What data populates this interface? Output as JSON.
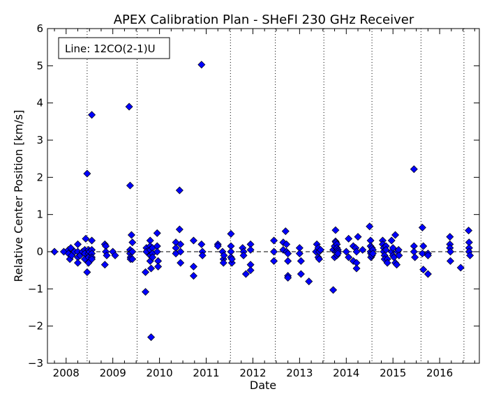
{
  "chart_data": {
    "type": "scatter",
    "title": "APEX Calibration Plan - SHeFI 230 GHz Receiver",
    "xlabel": "Date",
    "ylabel": "Relative Center Position [km/s]",
    "legend_text": "Line: 12CO(2-1)U",
    "legend_position": "top-left",
    "xlim": [
      2007.6,
      2016.85
    ],
    "ylim": [
      -3,
      6
    ],
    "x_ticks": [
      2008,
      2009,
      2010,
      2011,
      2012,
      2013,
      2014,
      2015,
      2016
    ],
    "x_tick_labels": [
      "2008",
      "2009",
      "2010",
      "2011",
      "2012",
      "2013",
      "2014",
      "2015",
      "2016"
    ],
    "x_minor_ticks": [
      2007.75,
      2008.25,
      2008.5,
      2008.75,
      2009.25,
      2009.5,
      2009.75,
      2010.25,
      2010.5,
      2010.75,
      2011.25,
      2011.5,
      2011.75,
      2012.25,
      2012.5,
      2012.75,
      2013.25,
      2013.5,
      2013.75,
      2014.25,
      2014.5,
      2014.75,
      2015.25,
      2015.5,
      2015.75,
      2016.25,
      2016.5,
      2016.75
    ],
    "y_ticks": [
      -3,
      -2,
      -1,
      0,
      1,
      2,
      3,
      4,
      5,
      6
    ],
    "y_tick_labels": [
      "−3",
      "−2",
      "−1",
      "0",
      "1",
      "2",
      "3",
      "4",
      "5",
      "6"
    ],
    "vertical_dotted_lines": [
      2008.45,
      2009.52,
      2011.52,
      2012.48,
      2013.52,
      2014.55,
      2015.6,
      2016.52
    ],
    "reference_line_y": 0,
    "marker_color": "#0000ff",
    "marker_edge_color": "#000000",
    "series": [
      {
        "x": [
          2007.75,
          2007.95,
          2008.05,
          2008.05,
          2008.08,
          2008.1,
          2008.12,
          2008.18,
          2008.25,
          2008.25,
          2008.25,
          2008.25,
          2008.3,
          2008.35,
          2008.4,
          2008.4,
          2008.4,
          2008.42,
          2008.45,
          2008.45,
          2008.48,
          2008.48,
          2008.48,
          2008.48,
          2008.5,
          2008.55,
          2008.55,
          2008.55,
          2008.55,
          2008.55,
          2008.55,
          2008.83,
          2008.83,
          2008.85,
          2008.85,
          2008.87,
          2009.0,
          2009.05,
          2009.35,
          2009.37,
          2009.37,
          2009.37,
          2009.38,
          2009.38,
          2009.4,
          2009.42,
          2009.42,
          2009.42,
          2009.7,
          2009.7,
          2009.72,
          2009.72,
          2009.8,
          2009.8,
          2009.8,
          2009.8,
          2009.8,
          2009.82,
          2009.82,
          2009.85,
          2009.85,
          2009.85,
          2009.95,
          2009.95,
          2009.95,
          2009.97,
          2009.97,
          2010.35,
          2010.35,
          2010.35,
          2010.43,
          2010.43,
          2010.45,
          2010.45,
          2010.45,
          2010.73,
          2010.73,
          2010.73,
          2010.9,
          2010.9,
          2010.92,
          2010.92,
          2011.25,
          2011.25,
          2011.35,
          2011.37,
          2011.37,
          2011.38,
          2011.53,
          2011.53,
          2011.53,
          2011.53,
          2011.55,
          2011.55,
          2011.78,
          2011.8,
          2011.8,
          2011.85,
          2011.95,
          2011.95,
          2011.95,
          2011.95,
          2012.45,
          2012.45,
          2012.45,
          2012.65,
          2012.65,
          2012.7,
          2012.72,
          2012.72,
          2012.75,
          2012.75,
          2012.75,
          2012.75,
          2013.0,
          2013.0,
          2013.03,
          2013.03,
          2013.2,
          2013.35,
          2013.37,
          2013.4,
          2013.4,
          2013.42,
          2013.42,
          2013.45,
          2013.72,
          2013.72,
          2013.75,
          2013.75,
          2013.77,
          2013.77,
          2013.78,
          2013.78,
          2013.8,
          2013.8,
          2013.8,
          2013.82,
          2013.82,
          2013.82,
          2014.0,
          2014.05,
          2014.05,
          2014.15,
          2014.15,
          2014.2,
          2014.22,
          2014.22,
          2014.22,
          2014.25,
          2014.35,
          2014.5,
          2014.52,
          2014.52,
          2014.52,
          2014.53,
          2014.53,
          2014.55,
          2014.55,
          2014.57,
          2014.57,
          2014.78,
          2014.78,
          2014.8,
          2014.8,
          2014.82,
          2014.82,
          2014.85,
          2014.85,
          2014.88,
          2014.88,
          2014.97,
          2014.97,
          2015.0,
          2015.0,
          2015.02,
          2015.05,
          2015.05,
          2015.08,
          2015.1,
          2015.12,
          2015.13,
          2015.45,
          2015.45,
          2015.45,
          2015.47,
          2015.63,
          2015.63,
          2015.65,
          2015.65,
          2015.75,
          2015.75,
          2015.75,
          2016.22,
          2016.22,
          2016.22,
          2016.23,
          2016.23,
          2016.45,
          2016.62,
          2016.63,
          2016.63,
          2016.63,
          2016.65
        ],
        "y": [
          0.0,
          0.0,
          0.05,
          -0.05,
          -0.2,
          0.1,
          -0.1,
          0.0,
          0.2,
          0.0,
          -0.15,
          -0.3,
          -0.1,
          0.0,
          0.05,
          -0.05,
          -0.2,
          0.35,
          -0.55,
          2.1,
          0.05,
          -0.05,
          -0.15,
          -0.3,
          0.0,
          0.3,
          0.05,
          -0.05,
          -0.15,
          -0.2,
          3.68,
          0.2,
          -0.35,
          0.15,
          0.0,
          -0.1,
          0.0,
          -0.1,
          3.9,
          1.78,
          0.05,
          -0.05,
          -0.15,
          -0.2,
          0.45,
          0.25,
          0.0,
          -0.2,
          -1.08,
          -0.55,
          0.1,
          0.0,
          0.3,
          0.15,
          0.05,
          -0.1,
          -0.25,
          -0.45,
          -2.3,
          0.1,
          -0.05,
          -0.15,
          0.5,
          0.15,
          0.0,
          -0.25,
          -0.4,
          0.25,
          0.1,
          -0.05,
          1.65,
          0.6,
          0.2,
          0.0,
          -0.3,
          0.3,
          -0.4,
          -0.65,
          5.03,
          0.2,
          0.0,
          -0.1,
          0.2,
          0.15,
          0.0,
          -0.2,
          -0.3,
          -0.1,
          0.48,
          0.15,
          0.0,
          -0.15,
          -0.3,
          -0.2,
          0.1,
          0.0,
          -0.1,
          -0.6,
          0.2,
          0.05,
          -0.35,
          -0.5,
          0.3,
          0.0,
          -0.25,
          0.25,
          0.05,
          0.55,
          0.2,
          0.0,
          -0.05,
          -0.25,
          -0.65,
          -0.7,
          0.1,
          -0.05,
          -0.25,
          -0.6,
          -0.8,
          0.0,
          0.2,
          0.1,
          -0.15,
          0.0,
          -0.2,
          0.05,
          -1.03,
          0.05,
          -0.15,
          0.15,
          0.28,
          0.58,
          0.0,
          0.25,
          0.2,
          0.1,
          -0.1,
          0.05,
          0.0,
          -0.05,
          0.0,
          -0.15,
          0.35,
          0.15,
          -0.25,
          0.1,
          0.0,
          -0.3,
          -0.45,
          0.4,
          0.05,
          0.68,
          0.3,
          0.15,
          0.0,
          -0.05,
          -0.15,
          0.1,
          -0.1,
          0.05,
          -0.05,
          0.3,
          0.2,
          0.1,
          0.0,
          -0.1,
          -0.2,
          0.15,
          0.05,
          -0.2,
          -0.3,
          0.3,
          0.0,
          0.1,
          -0.1,
          -0.15,
          0.45,
          -0.3,
          -0.35,
          0.0,
          0.05,
          -0.1,
          2.22,
          0.15,
          0.0,
          -0.15,
          0.65,
          -0.05,
          -0.48,
          0.15,
          -0.05,
          -0.1,
          -0.6,
          0.4,
          0.2,
          0.1,
          0.0,
          -0.25,
          -0.43,
          0.57,
          0.25,
          0.1,
          0.0,
          -0.1
        ]
      }
    ]
  }
}
